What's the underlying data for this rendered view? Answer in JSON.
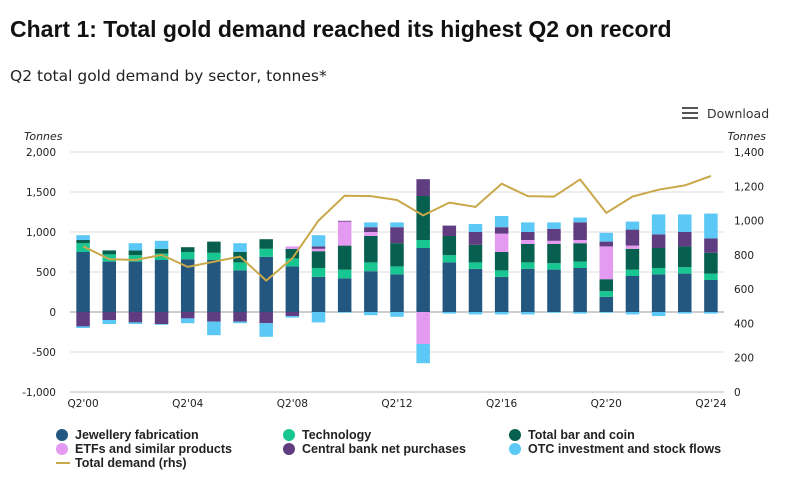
{
  "header": {
    "title": "Chart 1: Total gold demand reached its highest Q2 on record",
    "subtitle": "Q2 total gold demand by sector, tonnes*"
  },
  "toolbar": {
    "download_label": "Download",
    "download_icon": "menu-icon"
  },
  "chart_data": {
    "type": "bar",
    "stacked": true,
    "x": [
      "Q2'00",
      "Q2'01",
      "Q2'02",
      "Q2'03",
      "Q2'04",
      "Q2'05",
      "Q2'06",
      "Q2'07",
      "Q2'08",
      "Q2'09",
      "Q2'10",
      "Q2'11",
      "Q2'12",
      "Q2'13",
      "Q2'14",
      "Q2'15",
      "Q2'16",
      "Q2'17",
      "Q2'18",
      "Q2'19",
      "Q2'20",
      "Q2'21",
      "Q2'22",
      "Q2'23",
      "Q2'24"
    ],
    "x_tick_labels": [
      "Q2'00",
      "Q2'04",
      "Q2'08",
      "Q2'12",
      "Q2'16",
      "Q2'20",
      "Q2'24"
    ],
    "left_axis": {
      "unit_label": "Tonnes",
      "ylim": [
        -1000,
        2000
      ],
      "ticks": [
        "2,000",
        "1,500",
        "1,000",
        "500",
        "0",
        "-500",
        "-1,000"
      ]
    },
    "right_axis": {
      "unit_label": "Tonnes",
      "ylim": [
        0,
        1400
      ],
      "ticks": [
        "1,400",
        "1,200",
        "1,000",
        "800",
        "600",
        "400",
        "200",
        "0"
      ]
    },
    "grid": true,
    "legend_position": "bottom",
    "series": [
      {
        "name": "Jewellery fabrication",
        "color": "#24577f",
        "axis": "left",
        "values": [
          750,
          630,
          630,
          650,
          660,
          650,
          520,
          690,
          570,
          440,
          420,
          510,
          470,
          800,
          620,
          540,
          440,
          540,
          530,
          550,
          190,
          450,
          470,
          480,
          400
        ]
      },
      {
        "name": "Technology",
        "color": "#18c691",
        "axis": "left",
        "values": [
          110,
          90,
          80,
          80,
          90,
          90,
          100,
          100,
          100,
          110,
          110,
          110,
          100,
          100,
          90,
          80,
          80,
          80,
          80,
          80,
          70,
          80,
          80,
          80,
          80
        ]
      },
      {
        "name": "Total bar and coin",
        "color": "#07604f",
        "axis": "left",
        "values": [
          40,
          50,
          60,
          60,
          60,
          140,
          130,
          120,
          120,
          210,
          300,
          330,
          290,
          550,
          240,
          220,
          230,
          230,
          240,
          230,
          150,
          260,
          250,
          260,
          260
        ]
      },
      {
        "name": "ETFs and similar products",
        "color": "#e39af0",
        "axis": "left",
        "values": [
          0,
          0,
          0,
          0,
          0,
          0,
          0,
          0,
          30,
          30,
          300,
          50,
          0,
          -400,
          0,
          0,
          230,
          50,
          40,
          40,
          410,
          40,
          0,
          0,
          0
        ]
      },
      {
        "name": "Central bank net purchases",
        "color": "#5f3d80",
        "axis": "left",
        "values": [
          -180,
          -100,
          -130,
          -150,
          -80,
          -120,
          -120,
          -140,
          -50,
          30,
          10,
          60,
          200,
          210,
          130,
          160,
          80,
          100,
          150,
          220,
          60,
          200,
          170,
          180,
          180
        ]
      },
      {
        "name": "OTC investment and stock flows",
        "color": "#5bc8f5",
        "axis": "left",
        "values": [
          -20,
          -50,
          -20,
          -10,
          -60,
          -170,
          -20,
          -170,
          -20,
          -130,
          -10,
          -40,
          -60,
          -240,
          -20,
          -30,
          -30,
          -30,
          -10,
          -20,
          -10,
          -30,
          -50,
          -20,
          -20
        ],
        "positive_values": [
          60,
          0,
          90,
          100,
          0,
          0,
          110,
          0,
          0,
          140,
          0,
          60,
          60,
          0,
          0,
          100,
          140,
          120,
          80,
          60,
          110,
          100,
          250,
          220,
          310
        ]
      },
      {
        "name": "Total demand (rhs)",
        "color": "#c9a84a",
        "axis": "right",
        "type": "line",
        "values": [
          850,
          775,
          770,
          800,
          730,
          760,
          790,
          650,
          780,
          1000,
          1145,
          1143,
          1120,
          1030,
          1105,
          1080,
          1215,
          1143,
          1140,
          1240,
          1045,
          1140,
          1180,
          1205,
          1260
        ]
      }
    ]
  }
}
